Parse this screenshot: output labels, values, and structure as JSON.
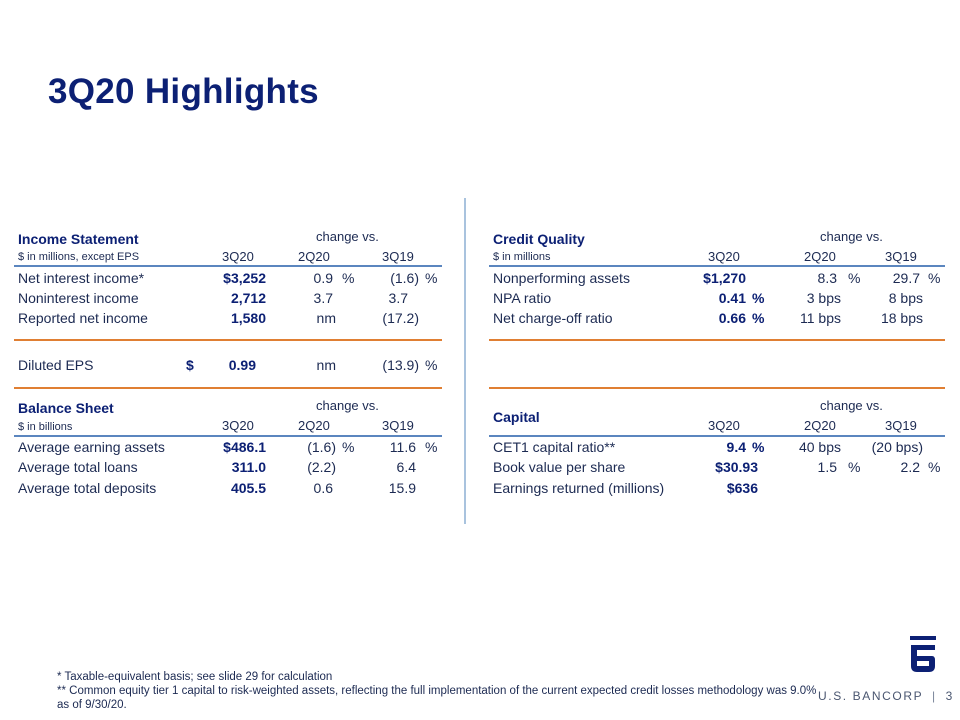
{
  "title": "3Q20 Highlights",
  "income": {
    "name": "Income Statement",
    "unit": "$ in millions, except EPS",
    "change_vs": "change vs.",
    "cols": [
      "3Q20",
      "2Q20",
      "3Q19"
    ],
    "rows": [
      {
        "label": "Net interest income*",
        "v3q20": "$3,252",
        "v2q20": "0.9",
        "p1": "%",
        "v3q19": "(1.6)",
        "p2": "%"
      },
      {
        "label": "Noninterest income",
        "v3q20": "2,712",
        "v2q20": "3.7",
        "v3q19": "3.7"
      },
      {
        "label": "Reported net income",
        "v3q20": "1,580",
        "v2q20": "nm",
        "v3q19": "(17.2)"
      }
    ],
    "eps": {
      "label": "Diluted EPS",
      "dollar": "$",
      "v3q20": "0.99",
      "v2q20": "nm",
      "v3q19": "(13.9)",
      "p2": "%"
    }
  },
  "balance": {
    "name": "Balance Sheet",
    "unit": "$ in billions",
    "change_vs": "change vs.",
    "cols": [
      "3Q20",
      "2Q20",
      "3Q19"
    ],
    "rows": [
      {
        "label": "Average earning assets",
        "v3q20": "$486.1",
        "v2q20": "(1.6)",
        "p1": "%",
        "v3q19": "11.6",
        "p2": "%"
      },
      {
        "label": "Average total loans",
        "v3q20": "311.0",
        "v2q20": "(2.2)",
        "v3q19": "6.4"
      },
      {
        "label": "Average total deposits",
        "v3q20": "405.5",
        "v2q20": "0.6",
        "v3q19": "15.9"
      }
    ]
  },
  "credit": {
    "name": "Credit Quality",
    "unit": "$ in millions",
    "change_vs": "change vs.",
    "cols": [
      "3Q20",
      "2Q20",
      "3Q19"
    ],
    "rows": [
      {
        "label": "Nonperforming assets",
        "v3q20": "$1,270",
        "v2q20": "8.3",
        "p1": "%",
        "v3q19": "29.7",
        "p2": "%"
      },
      {
        "label": "NPA ratio",
        "v3q20": "0.41",
        "p0": "%",
        "v2q20": "3 bps",
        "v3q19": "8 bps"
      },
      {
        "label": "Net charge-off ratio",
        "v3q20": "0.66",
        "p0": "%",
        "v2q20": "11 bps",
        "v3q19": "18 bps"
      }
    ]
  },
  "capital": {
    "name": "Capital",
    "change_vs": "change vs.",
    "cols": [
      "3Q20",
      "2Q20",
      "3Q19"
    ],
    "rows": [
      {
        "label": "CET1 capital ratio**",
        "v3q20": "9.4",
        "p0": "%",
        "v2q20": "40 bps",
        "v3q19": "(20 bps)"
      },
      {
        "label": "Book value per share",
        "v3q20": "$30.93",
        "v2q20": "1.5",
        "p1": "%",
        "v3q19": "2.2",
        "p2": "%"
      },
      {
        "label": "Earnings returned (millions)",
        "v3q20": "$636"
      }
    ]
  },
  "footnotes": [
    "* Taxable-equivalent basis; see slide 29 for calculation",
    "** Common equity tier 1 capital to risk-weighted assets, reflecting the full implementation of the current expected credit losses methodology was 9.0% as of 9/30/20."
  ],
  "brand": "U.S. BANCORP",
  "separator": "|",
  "page_number": "3",
  "colors": {
    "navy": "#0c2074",
    "orange": "#e07f33",
    "blue_rule": "#5b86bf",
    "divider": "#a9c3de"
  },
  "icons": {
    "logo": "us-bancorp-shield-icon"
  }
}
